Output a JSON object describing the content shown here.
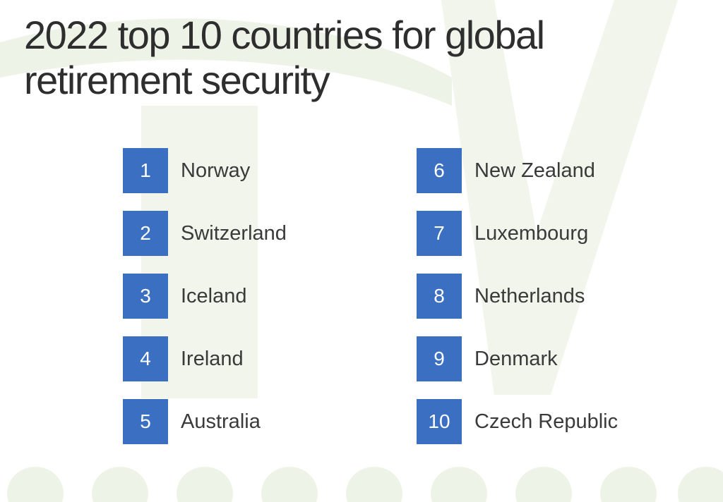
{
  "title": "2022 top 10 countries for global retirement security",
  "colors": {
    "rank_box": "#3a6fc2",
    "title_text": "#2e2e2e",
    "country_text": "#3a3a3a",
    "watermark": "#eef3e8"
  },
  "rankings": [
    {
      "rank": "1",
      "country": "Norway"
    },
    {
      "rank": "2",
      "country": "Switzerland"
    },
    {
      "rank": "3",
      "country": "Iceland"
    },
    {
      "rank": "4",
      "country": "Ireland"
    },
    {
      "rank": "5",
      "country": "Australia"
    },
    {
      "rank": "6",
      "country": "New Zealand"
    },
    {
      "rank": "7",
      "country": "Luxembourg"
    },
    {
      "rank": "8",
      "country": "Netherlands"
    },
    {
      "rank": "9",
      "country": "Denmark"
    },
    {
      "rank": "10",
      "country": "Czech Republic"
    }
  ]
}
